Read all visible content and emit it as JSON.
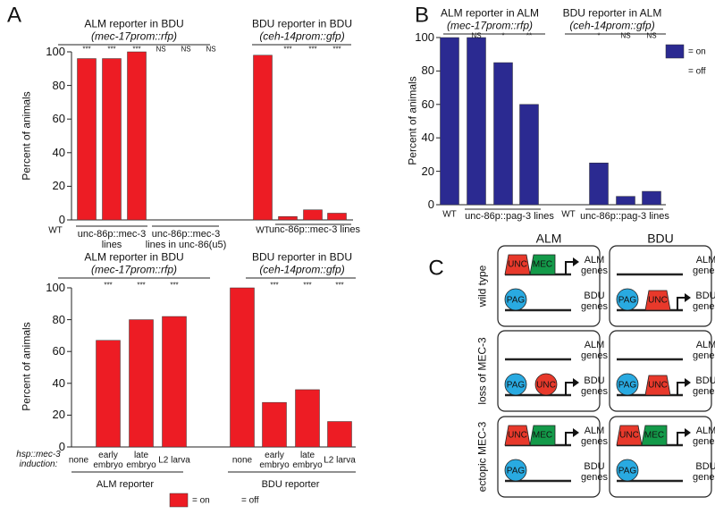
{
  "chart_data": [
    {
      "type": "bar",
      "panel_label": "A",
      "color": "#ed1c24",
      "headers": [
        {
          "title": "ALM reporter in BDU",
          "subtitle": "(mec-17prom::rfp)"
        },
        {
          "title": "BDU reporter in BDU",
          "subtitle": "(ceh-14prom::gfp)"
        }
      ],
      "ylabel": "Percent of animals",
      "categories": [
        "WT",
        null,
        null,
        null,
        null,
        null,
        null,
        "WT",
        null,
        null,
        null
      ],
      "values": [
        0,
        96,
        96,
        100,
        0,
        0,
        0,
        98,
        2,
        6,
        4
      ],
      "annotations": [
        null,
        "***",
        "***",
        "***",
        "NS",
        "NS",
        "NS",
        null,
        "***",
        "***",
        "***"
      ],
      "group_labels": [
        "unc-86p::mec-3 lines",
        "unc-86p::mec-3 lines in unc-86(u5)",
        "unc-86p::mec-3 lines"
      ],
      "ylim": [
        0,
        100
      ],
      "yticks": [
        0,
        20,
        40,
        60,
        80,
        100
      ]
    },
    {
      "type": "bar",
      "color": "#ed1c24",
      "headers": [
        {
          "title": "ALM reporter in BDU",
          "subtitle": "(mec-17prom::rfp)"
        },
        {
          "title": "BDU reporter in BDU",
          "subtitle": "(ceh-14prom::gfp)"
        }
      ],
      "ylabel": "Percent of animals",
      "row_label": "hsp::mec-3 induction:",
      "categories": [
        "none",
        "early embryo",
        "late embryo",
        "L2 larva",
        "none",
        "early embryo",
        "late embryo",
        "L2 larva"
      ],
      "values": [
        0,
        67,
        80,
        82,
        100,
        28,
        36,
        16
      ],
      "annotations": [
        null,
        "***",
        "***",
        "***",
        null,
        "***",
        "***",
        "***"
      ],
      "group_labels": [
        "ALM reporter",
        "BDU reporter"
      ],
      "legend": {
        "on": "= on",
        "off": "= off"
      },
      "ylim": [
        0,
        100
      ],
      "yticks": [
        0,
        20,
        40,
        60,
        80,
        100
      ]
    },
    {
      "type": "bar",
      "panel_label": "B",
      "color": "#2b2a91",
      "headers": [
        {
          "title": "ALM reporter in ALM",
          "subtitle": "(mec-17prom::rfp)"
        },
        {
          "title": "BDU reporter in ALM",
          "subtitle": "(ceh-14prom::gfp)"
        }
      ],
      "ylabel": "Percent of animals",
      "categories": [
        "WT",
        null,
        null,
        null,
        "WT",
        null,
        null,
        null
      ],
      "values": [
        100,
        100,
        85,
        60,
        0,
        25,
        5,
        8
      ],
      "annotations": [
        null,
        "NS",
        "*",
        "**",
        null,
        "*",
        "NS",
        "NS"
      ],
      "group_labels": [
        "unc-86p::pag-3 lines",
        "unc-86p::pag-3 lines"
      ],
      "legend": {
        "on": "= on",
        "off": "= off"
      },
      "ylim": [
        0,
        100
      ],
      "yticks": [
        0,
        20,
        40,
        60,
        80,
        100
      ]
    }
  ],
  "diagram": {
    "label": "C",
    "columns": [
      "ALM",
      "BDU"
    ],
    "rows": [
      {
        "label": "wild type",
        "cells": [
          {
            "top": {
              "factors": [
                "UNC",
                "MEC"
              ],
              "gene": "ALM genes"
            },
            "bottom": {
              "factors": [
                "PAG"
              ],
              "gene": "BDU genes"
            }
          },
          {
            "top": {
              "factors": [],
              "gene": "ALM genes"
            },
            "bottom": {
              "factors": [
                "PAG",
                "UNC"
              ],
              "gene": "BDU genes"
            }
          }
        ]
      },
      {
        "label": "loss of MEC-3",
        "cells": [
          {
            "top": {
              "factors": [],
              "gene": "ALM genes"
            },
            "bottom": {
              "factors": [
                "PAG",
                "UNC"
              ],
              "gene": "BDU genes"
            }
          },
          {
            "top": {
              "factors": [],
              "gene": "ALM genes"
            },
            "bottom": {
              "factors": [
                "PAG",
                "UNC"
              ],
              "gene": "BDU genes"
            }
          }
        ]
      },
      {
        "label": "ectopic MEC-3",
        "cells": [
          {
            "top": {
              "factors": [
                "UNC",
                "MEC"
              ],
              "gene": "ALM genes"
            },
            "bottom": {
              "factors": [
                "PAG"
              ],
              "gene": "BDU genes"
            }
          },
          {
            "top": {
              "factors": [
                "UNC",
                "MEC"
              ],
              "gene": "ALM genes"
            },
            "bottom": {
              "factors": [
                "PAG"
              ],
              "gene": "BDU genes"
            }
          }
        ]
      }
    ]
  }
}
